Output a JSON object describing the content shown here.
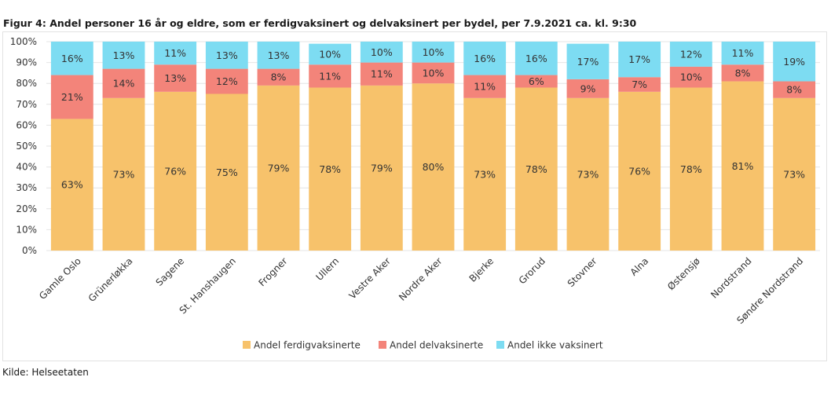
{
  "title": "Figur 4: Andel personer 16 år og eldre, som er ferdigvaksinert og delvaksinert per bydel, per 7.9.2021 ca. kl. 9:30",
  "source": "Kilde: Helseetaten",
  "chart_data": {
    "type": "bar",
    "stacked": true,
    "categories": [
      "Gamle Oslo",
      "Grünerløkka",
      "Sagene",
      "St. Hanshaugen",
      "Frogner",
      "Ullern",
      "Vestre Aker",
      "Nordre Aker",
      "Bjerke",
      "Grorud",
      "Stovner",
      "Alna",
      "Østensjø",
      "Nordstrand",
      "Søndre Nordstrand"
    ],
    "series": [
      {
        "name": "Andel ferdigvaksinerte",
        "color": "#f7c26b",
        "values": [
          63,
          73,
          76,
          75,
          79,
          78,
          79,
          80,
          73,
          78,
          73,
          76,
          78,
          81,
          73
        ]
      },
      {
        "name": "Andel delvaksinerte",
        "color": "#f3847a",
        "values": [
          21,
          14,
          13,
          12,
          8,
          11,
          11,
          10,
          11,
          6,
          9,
          7,
          10,
          8,
          8
        ]
      },
      {
        "name": "Andel ikke vaksinert",
        "color": "#7ddcf2",
        "values": [
          16,
          13,
          11,
          13,
          13,
          10,
          10,
          10,
          16,
          16,
          17,
          17,
          12,
          11,
          19
        ]
      }
    ],
    "ylim": [
      0,
      100
    ],
    "yticks": [
      "0%",
      "10%",
      "20%",
      "30%",
      "40%",
      "50%",
      "60%",
      "70%",
      "80%",
      "90%",
      "100%"
    ],
    "value_suffix": "%",
    "legend_position": "bottom-center",
    "grid": true
  }
}
